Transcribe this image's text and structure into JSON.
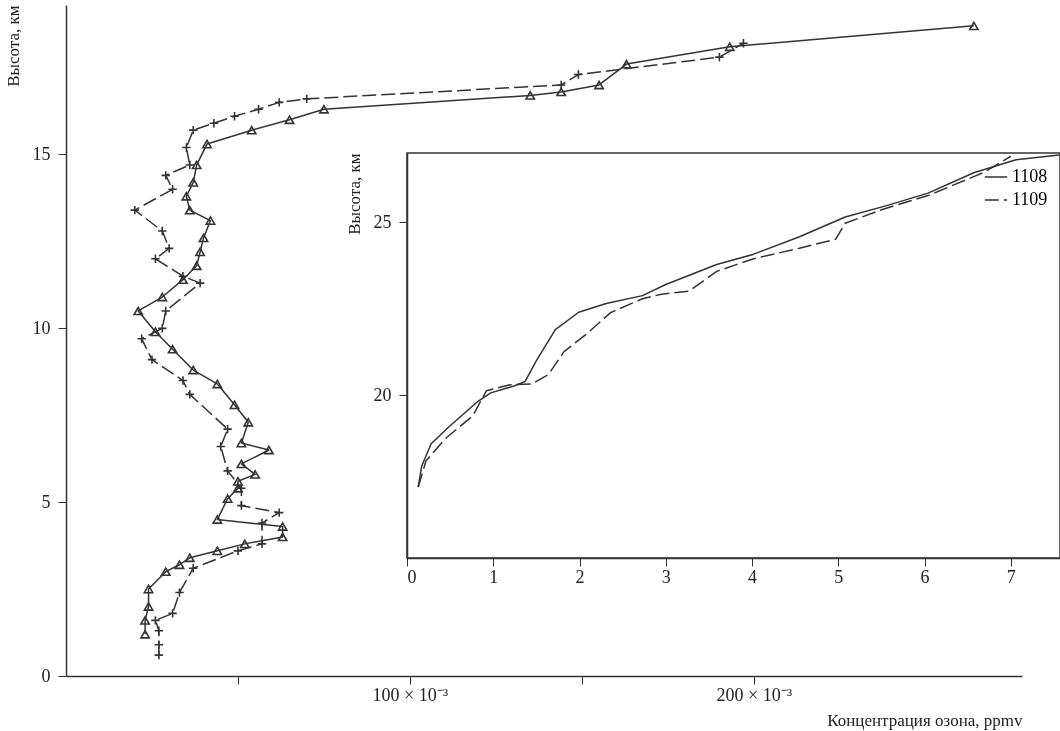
{
  "chart_data": [
    {
      "type": "line",
      "xlabel": "Концентрация озона, ppmv",
      "ylabel": "Высота, км",
      "xlim": [
        0,
        0.278
      ],
      "ylim": [
        0,
        19.3
      ],
      "xticks": [
        {
          "value": 0.05,
          "label": null
        },
        {
          "value": 0.1,
          "label": "100 × 10⁻³"
        },
        {
          "value": 0.15,
          "label": null
        },
        {
          "value": 0.2,
          "label": "200 × 10⁻³"
        }
      ],
      "yticks": [
        0,
        5,
        10,
        15
      ],
      "series": [
        {
          "color": "#333333",
          "marker": "triangle",
          "line_style": "solid",
          "x": [
            0.023,
            0.023,
            0.024,
            0.024,
            0.029,
            0.033,
            0.036,
            0.044,
            0.052,
            0.063,
            0.063,
            0.044,
            0.047,
            0.05,
            0.05,
            0.055,
            0.051,
            0.059,
            0.051,
            0.053,
            0.049,
            0.044,
            0.037,
            0.031,
            0.026,
            0.021,
            0.028,
            0.034,
            0.038,
            0.039,
            0.04,
            0.042,
            0.036,
            0.035,
            0.037,
            0.038,
            0.041,
            0.054,
            0.065,
            0.075,
            0.135,
            0.144,
            0.155,
            0.163,
            0.193,
            0.264
          ],
          "values": [
            1.2,
            1.6,
            2.0,
            2.5,
            3.0,
            3.2,
            3.4,
            3.6,
            3.8,
            4.0,
            4.3,
            4.5,
            5.1,
            5.4,
            5.6,
            5.8,
            6.1,
            6.5,
            6.7,
            7.3,
            7.8,
            8.4,
            8.8,
            9.4,
            9.9,
            10.5,
            10.9,
            11.4,
            11.8,
            12.2,
            12.6,
            13.1,
            13.4,
            13.8,
            14.2,
            14.7,
            15.3,
            15.7,
            16.0,
            16.3,
            16.7,
            16.8,
            17.0,
            17.6,
            18.1,
            18.7
          ]
        },
        {
          "color": "#333333",
          "marker": "cross",
          "line_style": "dashed",
          "x": [
            0.027,
            0.027,
            0.027,
            0.026,
            0.031,
            0.033,
            0.037,
            0.05,
            0.057,
            0.057,
            0.062,
            0.051,
            0.051,
            0.047,
            0.045,
            0.047,
            0.036,
            0.034,
            0.025,
            0.022,
            0.028,
            0.029,
            0.039,
            0.034,
            0.026,
            0.03,
            0.028,
            0.02,
            0.031,
            0.029,
            0.036,
            0.035,
            0.037,
            0.043,
            0.049,
            0.056,
            0.062,
            0.07,
            0.144,
            0.149,
            0.19,
            0.197
          ],
          "values": [
            0.6,
            0.9,
            1.3,
            1.6,
            1.8,
            2.4,
            3.1,
            3.6,
            3.8,
            4.4,
            4.7,
            4.9,
            5.4,
            5.9,
            6.6,
            7.1,
            8.1,
            8.5,
            9.1,
            9.7,
            10.0,
            10.5,
            11.3,
            11.5,
            12.0,
            12.3,
            12.8,
            13.4,
            14.0,
            14.4,
            14.7,
            15.2,
            15.7,
            15.9,
            16.1,
            16.3,
            16.5,
            16.6,
            17.0,
            17.3,
            17.8,
            18.2
          ]
        }
      ]
    },
    {
      "type": "line",
      "ylabel": "Высота, км",
      "xlim": [
        0,
        7.57
      ],
      "ylim": [
        15.3,
        27
      ],
      "xticks": [
        0,
        1,
        2,
        3,
        4,
        5,
        6,
        7
      ],
      "yticks": [
        20,
        25
      ],
      "legend": "top right",
      "series": [
        {
          "name": "1108",
          "color": "#333333",
          "line_style": "solid",
          "x": [
            0.13,
            0.17,
            0.28,
            0.49,
            0.81,
            0.97,
            1.24,
            1.37,
            1.5,
            1.72,
            1.99,
            2.31,
            2.73,
            3.0,
            3.59,
            4.01,
            4.55,
            5.08,
            5.56,
            6.04,
            6.57,
            7.05,
            7.56
          ],
          "values": [
            17.35,
            17.95,
            18.6,
            19.1,
            19.8,
            20.07,
            20.27,
            20.4,
            21.0,
            21.9,
            22.4,
            22.65,
            22.88,
            23.2,
            23.78,
            24.07,
            24.58,
            25.15,
            25.48,
            25.84,
            26.43,
            26.8,
            26.94
          ]
        },
        {
          "name": "1109",
          "color": "#333333",
          "line_style": "dashed",
          "x": [
            0.13,
            0.22,
            0.44,
            0.76,
            0.92,
            1.18,
            1.45,
            1.64,
            1.82,
            2.09,
            2.36,
            2.73,
            2.95,
            3.27,
            3.59,
            4.01,
            4.55,
            4.97,
            5.08,
            5.51,
            6.04,
            6.68,
            7.0
          ],
          "values": [
            17.35,
            18.1,
            18.74,
            19.4,
            20.13,
            20.3,
            20.33,
            20.6,
            21.26,
            21.79,
            22.39,
            22.79,
            22.92,
            23.01,
            23.58,
            23.94,
            24.25,
            24.51,
            24.97,
            25.37,
            25.77,
            26.43,
            26.9
          ]
        }
      ]
    }
  ]
}
